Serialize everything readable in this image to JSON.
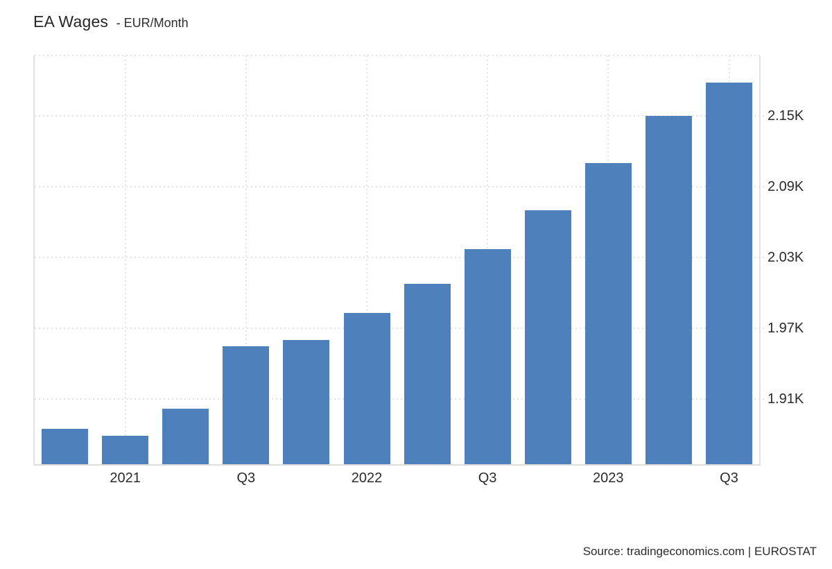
{
  "chart_data": {
    "type": "bar",
    "title": "EA Wages",
    "subtitle": "- EUR/Month",
    "source": "Source: tradingeconomics.com | EUROSTAT",
    "bar_color": "#4e80bc",
    "grid": "dotted",
    "legend": "none",
    "ylim": [
      1855,
      2201
    ],
    "values": [
      1885,
      1879,
      1902,
      1955,
      1960,
      1983,
      2008,
      2037,
      2070,
      2110,
      2150,
      2178
    ],
    "x_ticks": [
      {
        "index": 1,
        "label": "2021"
      },
      {
        "index": 3,
        "label": "Q3"
      },
      {
        "index": 5,
        "label": "2022"
      },
      {
        "index": 7,
        "label": "Q3"
      },
      {
        "index": 9,
        "label": "2023"
      },
      {
        "index": 11,
        "label": "Q3"
      }
    ],
    "y_ticks": [
      {
        "value": 2150,
        "label": "2.15K"
      },
      {
        "value": 2090,
        "label": "2.09K"
      },
      {
        "value": 2030,
        "label": "2.03K"
      },
      {
        "value": 1970,
        "label": "1.97K"
      },
      {
        "value": 1910,
        "label": "1.91K"
      }
    ]
  }
}
